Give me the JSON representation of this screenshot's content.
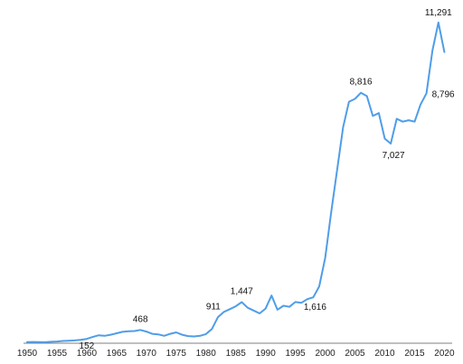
{
  "chart_data": {
    "type": "line",
    "title": "",
    "xlabel": "",
    "ylabel": "",
    "xlim": [
      1950,
      2021
    ],
    "ylim": [
      0,
      11700
    ],
    "grid": false,
    "legend": "none",
    "line_color": "#4f9de8",
    "x_ticks": [
      1950,
      1955,
      1960,
      1965,
      1970,
      1975,
      1980,
      1985,
      1990,
      1995,
      2000,
      2005,
      2010,
      2015,
      2020
    ],
    "x": [
      1950,
      1951,
      1952,
      1953,
      1954,
      1955,
      1956,
      1957,
      1958,
      1959,
      1960,
      1961,
      1962,
      1963,
      1964,
      1965,
      1966,
      1967,
      1968,
      1969,
      1970,
      1971,
      1972,
      1973,
      1974,
      1975,
      1976,
      1977,
      1978,
      1979,
      1980,
      1981,
      1982,
      1983,
      1984,
      1985,
      1986,
      1987,
      1988,
      1989,
      1990,
      1991,
      1992,
      1993,
      1994,
      1995,
      1996,
      1997,
      1998,
      1999,
      2000,
      2001,
      2002,
      2003,
      2004,
      2005,
      2006,
      2007,
      2008,
      2009,
      2010,
      2011,
      2012,
      2013,
      2014,
      2015,
      2016,
      2017,
      2018,
      2019,
      2020
    ],
    "values": [
      40,
      45,
      40,
      35,
      50,
      60,
      80,
      90,
      100,
      120,
      152,
      220,
      280,
      260,
      300,
      350,
      400,
      420,
      430,
      468,
      410,
      330,
      310,
      260,
      330,
      380,
      300,
      250,
      240,
      260,
      320,
      500,
      911,
      1100,
      1200,
      1300,
      1447,
      1250,
      1150,
      1050,
      1220,
      1680,
      1180,
      1320,
      1280,
      1450,
      1420,
      1550,
      1616,
      2000,
      3000,
      4600,
      6100,
      7600,
      8500,
      8600,
      8816,
      8700,
      8000,
      8100,
      7200,
      7027,
      7900,
      7800,
      7850,
      7800,
      8400,
      8796,
      10300,
      11291,
      10250
    ],
    "data_labels": [
      {
        "x": 1960,
        "text": "152"
      },
      {
        "x": 1969,
        "text": "468"
      },
      {
        "x": 1982,
        "text": "911"
      },
      {
        "x": 1986,
        "text": "1,447"
      },
      {
        "x": 1998,
        "text": "1,616"
      },
      {
        "x": 2006,
        "text": "8,816"
      },
      {
        "x": 2011,
        "text": "7,027"
      },
      {
        "x": 2017,
        "text": "8,796"
      },
      {
        "x": 2019,
        "text": "11,291"
      }
    ]
  }
}
